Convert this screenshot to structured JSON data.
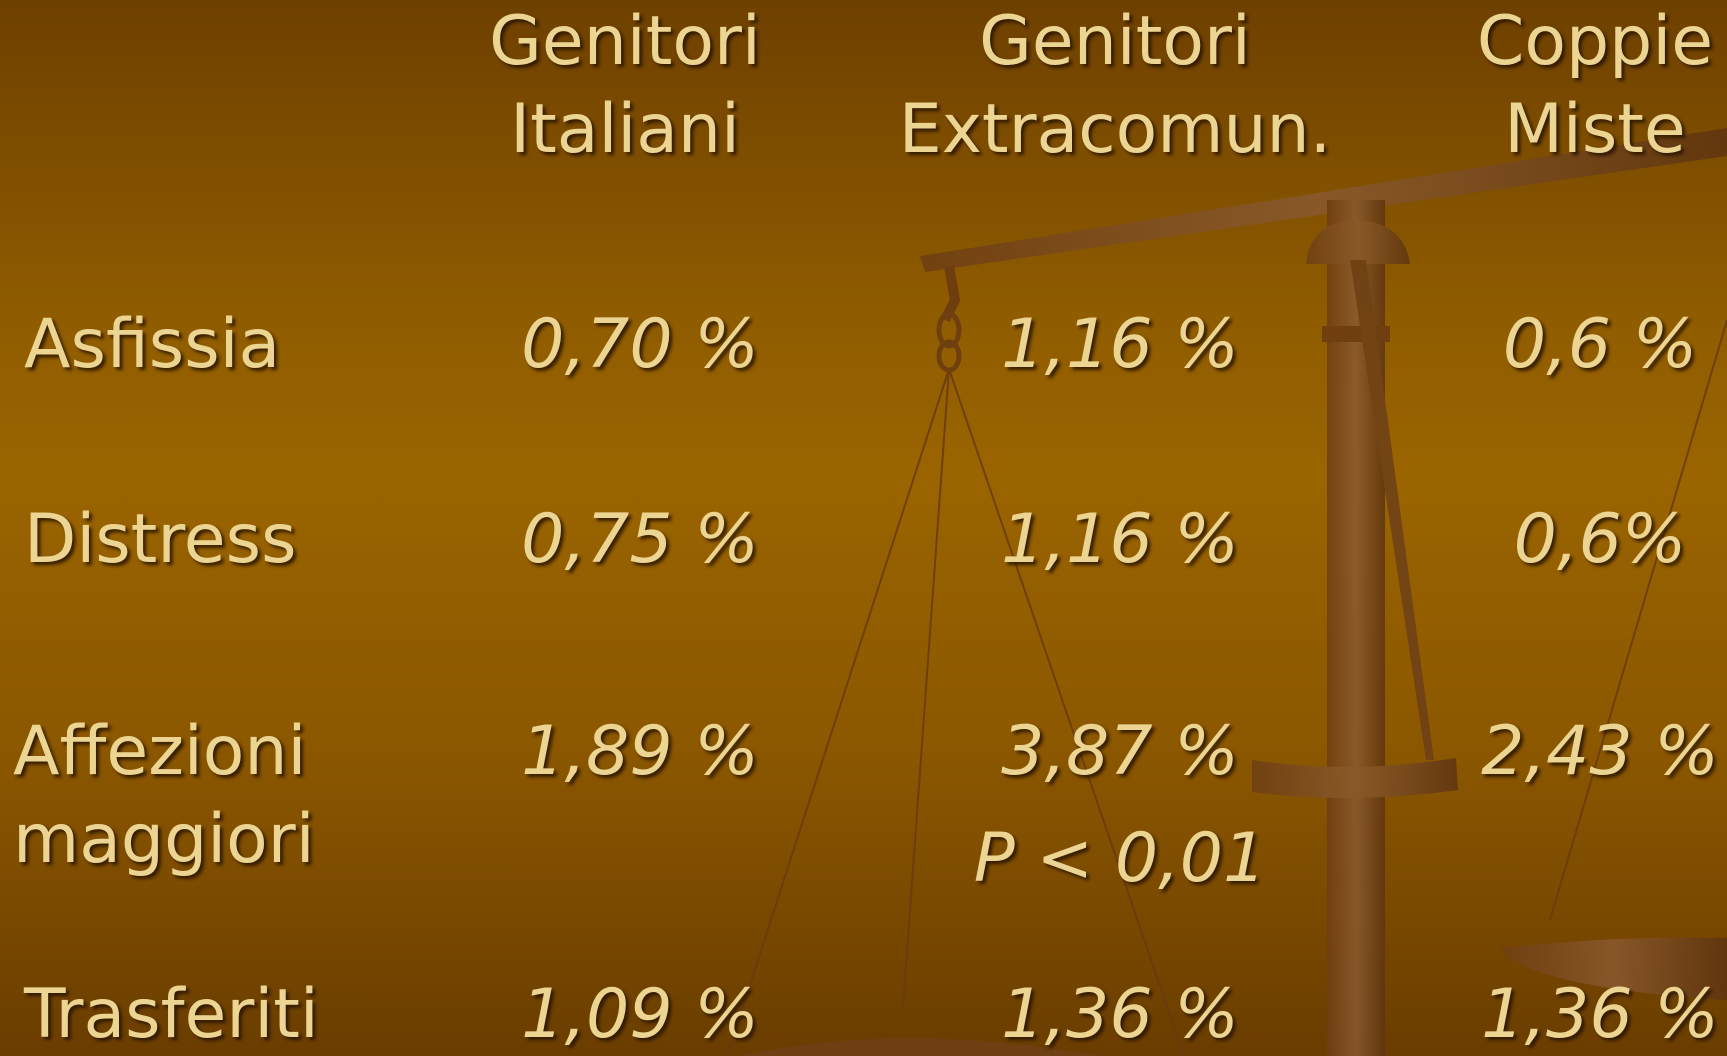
{
  "table": {
    "columns": [
      [
        "Genitori",
        "Italiani"
      ],
      [
        "Genitori",
        "Extracomun."
      ],
      [
        "Coppie",
        "Miste"
      ]
    ],
    "rows": [
      {
        "label": [
          "Asfissia"
        ],
        "cells": [
          "0,70 %",
          "1,16 %",
          "0,6 %"
        ]
      },
      {
        "label": [
          "Distress"
        ],
        "cells": [
          "0,75 %",
          "1,16 %",
          "0,6%"
        ]
      },
      {
        "label": [
          "Affezioni",
          "maggiori"
        ],
        "cells": [
          "1,89 %",
          "3,87 %",
          "2,43 %"
        ],
        "note": "P < 0,01"
      },
      {
        "label": [
          "Trasferiti"
        ],
        "cells": [
          "1,09 %",
          "1,36 %",
          "1,36 %"
        ]
      }
    ]
  }
}
